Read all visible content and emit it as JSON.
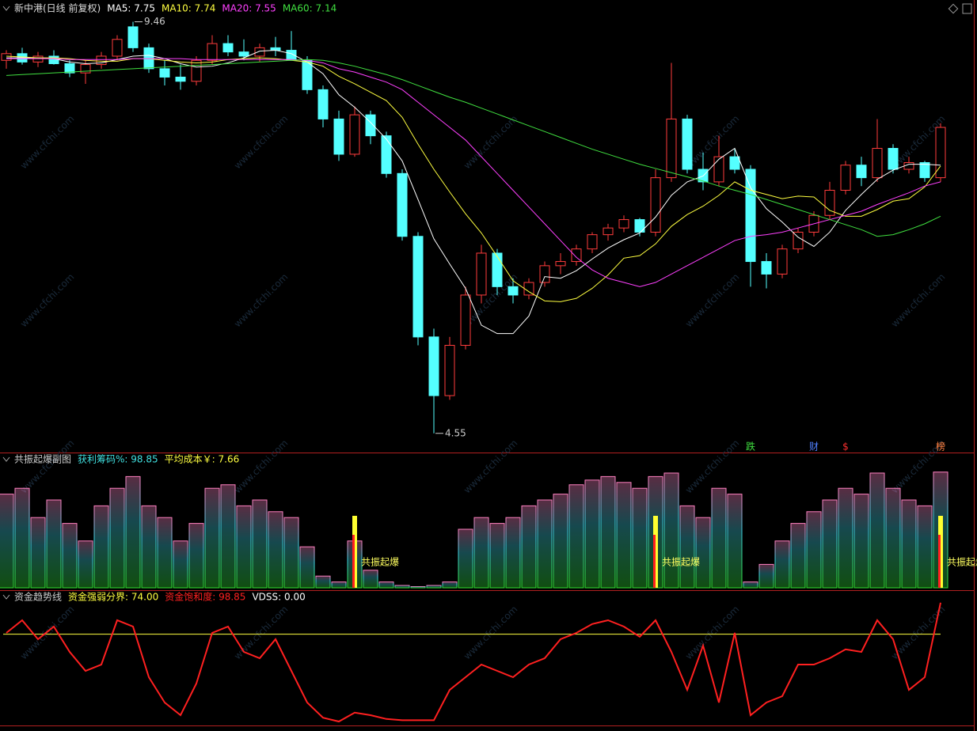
{
  "chart_data": [
    {
      "type": "candlestick",
      "title": "新中港(日线 前复权)",
      "watermark": "www.cfchi.com",
      "ylim": [
        4.34,
        9.55
      ],
      "open": [
        9.0,
        9.08,
        8.98,
        9.05,
        8.96,
        8.85,
        8.95,
        9.05,
        9.4,
        9.15,
        8.9,
        8.8,
        8.75,
        9.0,
        9.2,
        9.1,
        9.05,
        9.15,
        9.12,
        9.0,
        8.65,
        8.3,
        7.88,
        8.35,
        8.1,
        7.65,
        6.9,
        5.7,
        5.0,
        5.6,
        6.2,
        6.7,
        6.3,
        6.2,
        6.35,
        6.55,
        6.6,
        6.75,
        6.92,
        7.0,
        7.1,
        6.95,
        7.6,
        8.3,
        7.7,
        7.55,
        7.85,
        7.7,
        6.6,
        6.45,
        6.75,
        6.95,
        7.15,
        7.45,
        7.75,
        7.6,
        7.95,
        7.7,
        7.78,
        7.6
      ],
      "high": [
        9.12,
        9.15,
        9.1,
        9.12,
        9.0,
        9.0,
        9.1,
        9.3,
        9.46,
        9.2,
        9.0,
        8.95,
        9.05,
        9.3,
        9.3,
        9.25,
        9.2,
        9.28,
        9.35,
        9.05,
        8.7,
        8.4,
        8.45,
        8.4,
        8.15,
        7.7,
        6.95,
        5.8,
        5.7,
        6.3,
        6.8,
        6.75,
        6.4,
        6.4,
        6.6,
        6.7,
        6.8,
        6.95,
        7.05,
        7.15,
        7.12,
        7.7,
        8.97,
        8.35,
        7.9,
        8.1,
        7.95,
        7.75,
        6.7,
        6.8,
        7.0,
        7.2,
        7.55,
        7.8,
        7.85,
        8.3,
        8.0,
        7.85,
        7.8,
        8.25
      ],
      "low": [
        8.9,
        8.95,
        8.92,
        8.95,
        8.8,
        8.72,
        8.9,
        9.0,
        9.1,
        8.85,
        8.7,
        8.65,
        8.7,
        8.95,
        9.05,
        9.0,
        8.98,
        9.05,
        9.05,
        8.6,
        8.2,
        7.8,
        7.85,
        8.0,
        7.6,
        6.85,
        5.6,
        4.55,
        4.95,
        5.55,
        6.1,
        6.2,
        6.1,
        6.15,
        6.3,
        6.45,
        6.55,
        6.7,
        6.85,
        6.95,
        6.9,
        6.9,
        7.55,
        7.65,
        7.45,
        7.5,
        7.65,
        6.3,
        6.28,
        6.4,
        6.7,
        6.9,
        7.1,
        7.4,
        7.5,
        7.55,
        7.65,
        7.65,
        7.55,
        7.55
      ],
      "close": [
        9.08,
        8.98,
        9.05,
        8.96,
        8.85,
        8.95,
        9.05,
        9.25,
        9.15,
        8.9,
        8.8,
        8.75,
        9.0,
        9.2,
        9.1,
        9.05,
        9.15,
        9.12,
        9.0,
        8.65,
        8.3,
        7.88,
        8.35,
        8.1,
        7.65,
        6.9,
        5.7,
        5.0,
        5.6,
        6.2,
        6.7,
        6.3,
        6.2,
        6.35,
        6.55,
        6.6,
        6.75,
        6.92,
        7.0,
        7.1,
        6.95,
        7.6,
        8.3,
        7.7,
        7.55,
        7.85,
        7.7,
        6.6,
        6.45,
        6.75,
        6.95,
        7.15,
        7.45,
        7.75,
        7.6,
        7.95,
        7.7,
        7.78,
        7.6,
        8.2
      ],
      "up_color": "#ff3c3c",
      "down_color": "#54ffff",
      "series": [
        {
          "name": "MA5: 7.75",
          "color": "#ffffff",
          "values": [
            9.03,
            9.03,
            9.03,
            9.02,
            8.98,
            8.96,
            8.97,
            9.01,
            9.05,
            9.06,
            9.02,
            8.96,
            8.92,
            8.93,
            8.97,
            9.03,
            9.11,
            9.12,
            9.08,
            8.98,
            8.84,
            8.59,
            8.44,
            8.26,
            8.06,
            7.8,
            7.34,
            6.87,
            6.57,
            6.28,
            5.84,
            5.74,
            5.74,
            5.95,
            6.42,
            6.4,
            6.49,
            6.63,
            6.76,
            6.86,
            6.94,
            7.13,
            7.39,
            7.55,
            7.62,
            7.82,
            7.95,
            7.48,
            7.23,
            7.07,
            6.89,
            6.78,
            6.95,
            7.21,
            7.4,
            7.58,
            7.69,
            7.76,
            7.76,
            7.75
          ]
        },
        {
          "name": "MA10: 7.74",
          "color": "#ffff40",
          "values": [
            9.05,
            9.04,
            9.03,
            9.03,
            9.02,
            9.0,
            8.99,
            8.99,
            9.02,
            9.02,
            9.0,
            8.98,
            8.97,
            8.98,
            9.01,
            9.02,
            9.03,
            9.02,
            9.0,
            8.98,
            8.93,
            8.81,
            8.72,
            8.62,
            8.52,
            8.32,
            8.0,
            7.7,
            7.43,
            7.17,
            6.94,
            6.66,
            6.37,
            6.24,
            6.13,
            6.12,
            6.16,
            6.28,
            6.44,
            6.64,
            6.67,
            6.81,
            7.02,
            7.16,
            7.26,
            7.39,
            7.55,
            7.45,
            7.4,
            7.35,
            7.38,
            7.37,
            7.21,
            7.14,
            7.14,
            7.22,
            7.32,
            7.35,
            7.49,
            7.74
          ]
        },
        {
          "name": "MA20: 7.55",
          "color": "#ff40ff",
          "values": [
            9.02,
            9.02,
            9.02,
            9.02,
            9.01,
            9.01,
            9.01,
            9.01,
            9.02,
            9.02,
            9.02,
            9.02,
            9.01,
            9.01,
            9.01,
            9.01,
            9.01,
            9.01,
            9.01,
            9.0,
            8.97,
            8.9,
            8.86,
            8.8,
            8.74,
            8.65,
            8.5,
            8.35,
            8.2,
            8.05,
            7.85,
            7.65,
            7.45,
            7.25,
            7.05,
            6.85,
            6.65,
            6.5,
            6.4,
            6.35,
            6.3,
            6.35,
            6.45,
            6.55,
            6.65,
            6.75,
            6.85,
            6.9,
            6.92,
            6.95,
            7.0,
            7.05,
            7.1,
            7.15,
            7.2,
            7.28,
            7.35,
            7.42,
            7.5,
            7.55
          ]
        },
        {
          "name": "MA60: 7.14",
          "color": "#40e040",
          "values": [
            8.82,
            8.83,
            8.84,
            8.85,
            8.86,
            8.87,
            8.88,
            8.89,
            8.9,
            8.91,
            8.92,
            8.93,
            8.94,
            8.95,
            8.96,
            8.97,
            8.98,
            8.99,
            9.0,
            9.01,
            9.0,
            8.97,
            8.93,
            8.88,
            8.83,
            8.77,
            8.7,
            8.63,
            8.56,
            8.5,
            8.43,
            8.36,
            8.29,
            8.22,
            8.15,
            8.08,
            8.01,
            7.94,
            7.88,
            7.82,
            7.76,
            7.71,
            7.66,
            7.61,
            7.56,
            7.5,
            7.45,
            7.4,
            7.34,
            7.28,
            7.22,
            7.16,
            7.1,
            7.04,
            6.98,
            6.9,
            6.92,
            6.98,
            7.05,
            7.14
          ]
        }
      ],
      "markers": [
        {
          "index": 47,
          "text": "跌",
          "color": "#40e040"
        },
        {
          "index": 51,
          "text": "财",
          "color": "#5080ff"
        },
        {
          "index": 53,
          "text": "$",
          "color": "#ff3030"
        },
        {
          "index": 59,
          "text": "榜",
          "color": "#ff8040"
        }
      ]
    },
    {
      "type": "bar",
      "title": "共振起爆副图",
      "ylim": [
        0,
        100
      ],
      "series": [
        {
          "name": "获利筹码%: 98.85",
          "color": "#40e0e0",
          "values": [
            80,
            85,
            60,
            75,
            55,
            40,
            70,
            85,
            95,
            70,
            60,
            40,
            55,
            85,
            88,
            70,
            75,
            65,
            60,
            35,
            10,
            5,
            40,
            15,
            5,
            2,
            1,
            2,
            5,
            50,
            60,
            55,
            60,
            70,
            75,
            80,
            88,
            92,
            95,
            90,
            85,
            95,
            98,
            70,
            60,
            85,
            80,
            5,
            20,
            40,
            55,
            65,
            75,
            85,
            80,
            98,
            85,
            75,
            70,
            98.85
          ]
        }
      ],
      "extra_label": {
        "text": "平均成本￥: 7.66",
        "color": "#ffff40"
      },
      "signals": [
        {
          "index": 22,
          "text": "共振起爆"
        },
        {
          "index": 41,
          "text": "共振起爆"
        },
        {
          "index": 59,
          "text": "共振起爆"
        }
      ]
    },
    {
      "type": "line",
      "title": "资金趋势线",
      "ylim": [
        0,
        105
      ],
      "reference": {
        "name": "资金强弱分界: 74.00",
        "value": 74,
        "color": "#ffff40"
      },
      "series": [
        {
          "name": "资金饱和度: 98.85",
          "color": "#ff2020",
          "values": [
            75,
            85,
            70,
            80,
            60,
            45,
            50,
            85,
            80,
            40,
            20,
            10,
            35,
            75,
            80,
            60,
            55,
            70,
            45,
            20,
            8,
            5,
            12,
            10,
            7,
            6,
            6,
            6,
            30,
            40,
            50,
            45,
            40,
            50,
            55,
            70,
            75,
            82,
            85,
            80,
            72,
            85,
            60,
            30,
            65,
            20,
            75,
            10,
            20,
            25,
            50,
            50,
            55,
            62,
            60,
            85,
            70,
            30,
            40,
            98.85
          ]
        }
      ],
      "extra_label": {
        "text": "VDSS: 0.00",
        "color": "#ffffff"
      }
    }
  ]
}
